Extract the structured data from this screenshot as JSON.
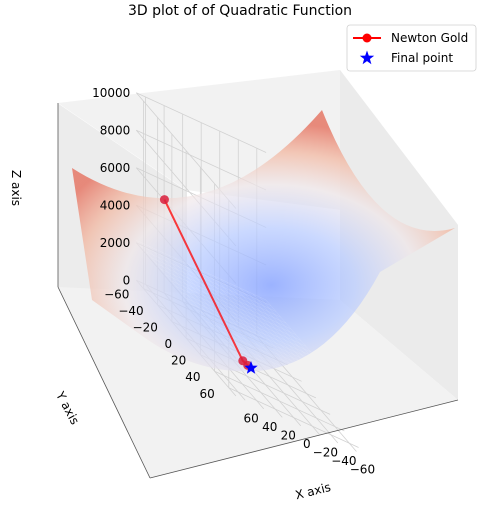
{
  "chart_data": {
    "type": "surface3d",
    "title": "3D plot of of Quadratic Function",
    "xlabel": "X axis",
    "ylabel": "Y axis",
    "zlabel": "Z axis",
    "xlim": [
      -70,
      70
    ],
    "ylim": [
      -70,
      70
    ],
    "zlim": [
      0,
      10000
    ],
    "x_ticks": [
      "−40",
      "−20",
      "0",
      "20",
      "40",
      "60",
      "−60"
    ],
    "x_tick_values": [
      -40,
      -20,
      0,
      20,
      40,
      60,
      -60
    ],
    "y_ticks": [
      "−60",
      "−40",
      "−20",
      "0",
      "20",
      "40",
      "60"
    ],
    "y_tick_values": [
      -60,
      -40,
      -20,
      0,
      20,
      40,
      60
    ],
    "z_ticks": [
      "0",
      "2000",
      "4000",
      "6000",
      "8000",
      "10000"
    ],
    "z_tick_values": [
      0,
      2000,
      4000,
      6000,
      8000,
      10000
    ],
    "surface_colormap": "coolwarm",
    "surface_alpha": 0.5,
    "grid": true,
    "legend_position": "top-right",
    "series": [
      {
        "name": "Newton Gold",
        "type": "line-with-markers",
        "color": "#ff0000",
        "x": [
          55,
          5,
          2,
          0
        ],
        "y": [
          -50,
          -5,
          -2,
          0
        ],
        "z": [
          5525,
          50,
          8,
          0
        ]
      },
      {
        "name": "Final point",
        "type": "marker",
        "marker": "star",
        "color": "#0000ff",
        "x": [
          0
        ],
        "y": [
          0
        ],
        "z": [
          0
        ]
      }
    ]
  }
}
